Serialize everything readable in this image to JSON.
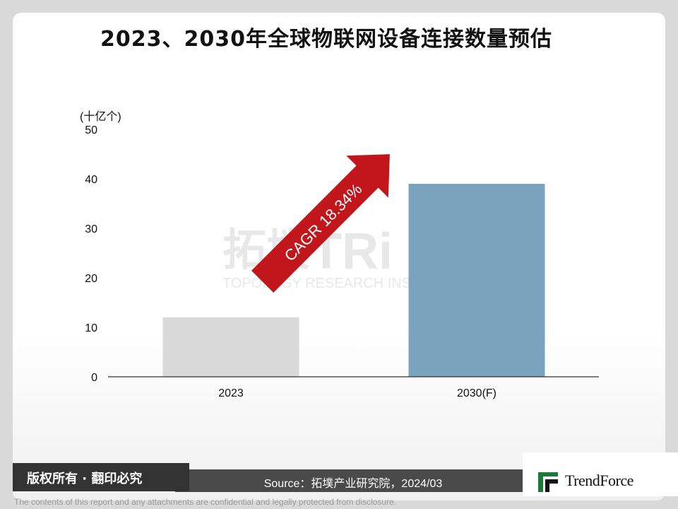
{
  "chart_data": {
    "type": "bar",
    "title": "2023、2030年全球物联网设备连接数量预估",
    "unit_label": "(十亿个)",
    "categories": [
      "2023",
      "2030(F)"
    ],
    "values": [
      12,
      39
    ],
    "bar_colors": [
      "#d9d9d9",
      "#7aa3bd"
    ],
    "ylim": [
      0,
      50
    ],
    "yticks": [
      0,
      10,
      20,
      30,
      40,
      50
    ],
    "grid": false,
    "annotation": "CAGR 18.34%",
    "annotation_color": "#c0161c"
  },
  "watermark": {
    "cn": "拓墣",
    "mark": "TRi",
    "en": "TOPOLOGY RESEARCH INSTITUTE"
  },
  "footer": {
    "copyright": "版权所有 · 翻印必究",
    "source": "Source：拓墣产业研究院，2024/03",
    "brand": "TrendForce",
    "disclaimer": "The contents of this report and any attachments are confidential and legally protected from disclosure."
  }
}
